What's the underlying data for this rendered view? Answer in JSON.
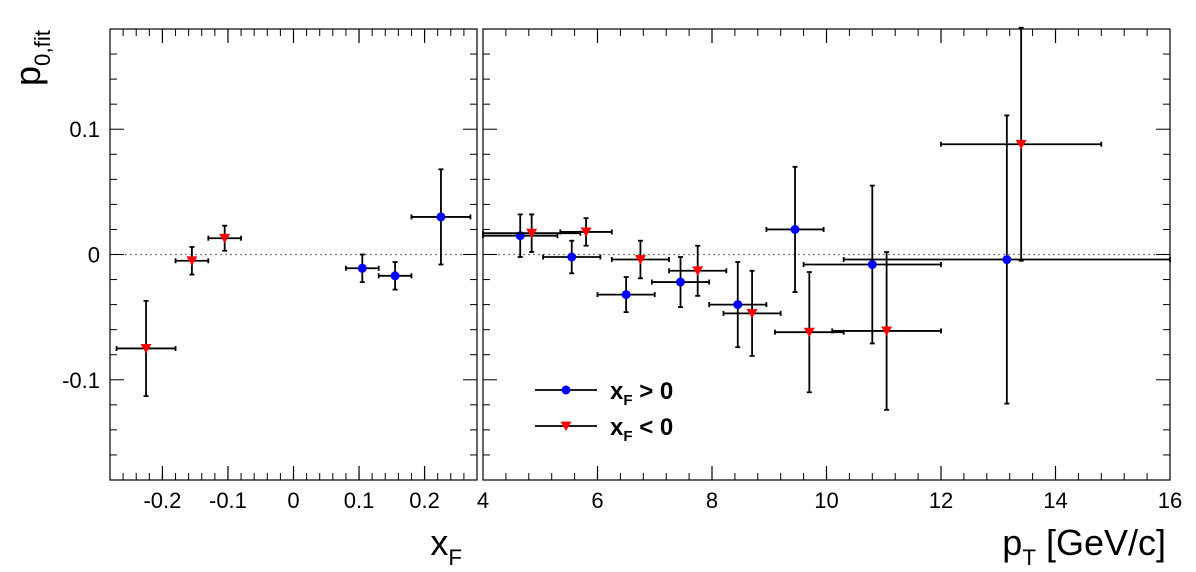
{
  "chart_data": {
    "type": "scatter",
    "y_axis": {
      "label_main": "p",
      "label_sub": "0,fit",
      "ylim": [
        -0.18,
        0.18
      ],
      "ticks": [
        -0.1,
        0,
        0.1
      ],
      "tick_labels": [
        "-0.1",
        "0",
        "0.1"
      ]
    },
    "panels": [
      {
        "id": "xf",
        "xlabel_main": "x",
        "xlabel_sub": "F",
        "xlabel_rest": "",
        "xlim": [
          -0.28,
          0.28
        ],
        "ticks": [
          -0.2,
          -0.1,
          0,
          0.1,
          0.2
        ],
        "tick_labels": [
          "-0.2",
          "-0.1",
          "0",
          "0.1",
          "0.2"
        ],
        "series": [
          {
            "name": "xF > 0",
            "marker": "circle",
            "color": "#0000ff",
            "points": [
              {
                "x": 0.105,
                "y": -0.011,
                "xerr": 0.025,
                "yerr": 0.011
              },
              {
                "x": 0.155,
                "y": -0.017,
                "xerr": 0.025,
                "yerr": 0.011
              },
              {
                "x": 0.225,
                "y": 0.03,
                "xerr": 0.045,
                "yerr": 0.038
              }
            ]
          },
          {
            "name": "xF < 0",
            "marker": "triangle-down",
            "color": "#ff0000",
            "points": [
              {
                "x": -0.225,
                "y": -0.075,
                "xerr": 0.045,
                "yerr": 0.038
              },
              {
                "x": -0.155,
                "y": -0.005,
                "xerr": 0.025,
                "yerr": 0.011
              },
              {
                "x": -0.105,
                "y": 0.013,
                "xerr": 0.025,
                "yerr": 0.01
              }
            ]
          }
        ]
      },
      {
        "id": "pt",
        "xlabel_main": "p",
        "xlabel_sub": "T",
        "xlabel_rest": " [GeV/c]",
        "xlim": [
          4,
          16
        ],
        "ticks": [
          4,
          6,
          8,
          10,
          12,
          14,
          16
        ],
        "tick_labels": [
          "4",
          "6",
          "8",
          "10",
          "12",
          "14",
          "16"
        ],
        "series": [
          {
            "name": "xF > 0",
            "marker": "circle",
            "color": "#0000ff",
            "points": [
              {
                "x": 4.65,
                "y": 0.015,
                "xerr": 0.65,
                "yerr": 0.017
              },
              {
                "x": 5.55,
                "y": -0.002,
                "xerr": 0.5,
                "yerr": 0.013
              },
              {
                "x": 6.5,
                "y": -0.032,
                "xerr": 0.5,
                "yerr": 0.014
              },
              {
                "x": 7.45,
                "y": -0.022,
                "xerr": 0.5,
                "yerr": 0.02
              },
              {
                "x": 8.45,
                "y": -0.04,
                "xerr": 0.5,
                "yerr": 0.034
              },
              {
                "x": 9.45,
                "y": 0.02,
                "xerr": 0.5,
                "yerr": 0.05
              },
              {
                "x": 10.8,
                "y": -0.008,
                "xerr": 1.2,
                "yerr": 0.063
              },
              {
                "x": 13.15,
                "y": -0.004,
                "xerr": 2.85,
                "yerr": 0.115
              }
            ]
          },
          {
            "name": "xF < 0",
            "marker": "triangle-down",
            "color": "#ff0000",
            "points": [
              {
                "x": 4.85,
                "y": 0.017,
                "xerr": 0.85,
                "yerr": 0.015
              },
              {
                "x": 5.8,
                "y": 0.018,
                "xerr": 0.45,
                "yerr": 0.011
              },
              {
                "x": 6.75,
                "y": -0.004,
                "xerr": 0.5,
                "yerr": 0.015
              },
              {
                "x": 7.75,
                "y": -0.013,
                "xerr": 0.5,
                "yerr": 0.02
              },
              {
                "x": 8.7,
                "y": -0.047,
                "xerr": 0.5,
                "yerr": 0.034
              },
              {
                "x": 9.7,
                "y": -0.062,
                "xerr": 0.6,
                "yerr": 0.048
              },
              {
                "x": 11.05,
                "y": -0.061,
                "xerr": 0.95,
                "yerr": 0.063
              },
              {
                "x": 13.4,
                "y": 0.088,
                "xerr": 1.4,
                "yerr": 0.093
              }
            ]
          }
        ]
      }
    ],
    "legend": {
      "placement": "bottom-left of right panel",
      "entries": [
        {
          "main": "x",
          "sub": "F",
          "rest": " > 0",
          "marker": "circle",
          "color": "#0000ff"
        },
        {
          "main": "x",
          "sub": "F",
          "rest": " < 0",
          "marker": "triangle-down",
          "color": "#ff0000"
        }
      ]
    },
    "reference_line": {
      "y": 0,
      "style": "dotted",
      "color": "#808080"
    }
  }
}
